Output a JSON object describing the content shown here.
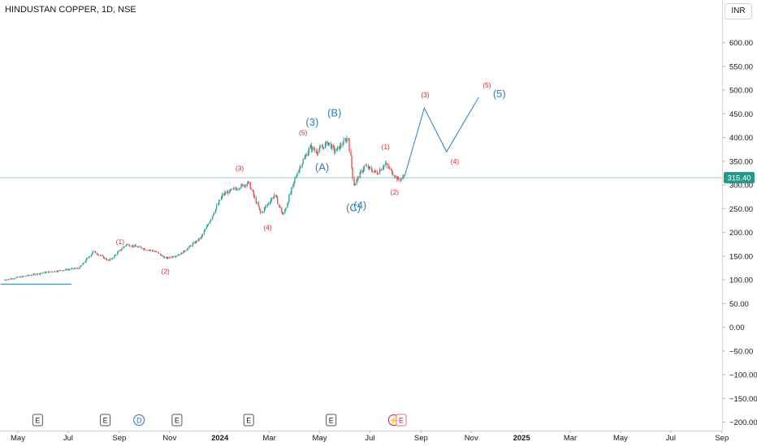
{
  "header": {
    "title": "HINDUSTAN COPPER, 1D, NSE",
    "currency": "INR"
  },
  "price_axis": {
    "labels": [
      "600.00",
      "550.00",
      "500.00",
      "450.00",
      "400.00",
      "350.00",
      "300.00",
      "250.00",
      "200.00",
      "150.00",
      "100.00",
      "50.00",
      "0.00",
      "−50.00",
      "−100.00",
      "−150.00",
      "−200.00"
    ],
    "last_price_label": "315.40"
  },
  "time_axis": {
    "labels": [
      "May",
      "Jul",
      "Sep",
      "Nov",
      "2024",
      "Mar",
      "May",
      "Jul",
      "Sep",
      "Nov",
      "2025",
      "Mar",
      "May",
      "Jul",
      "Sep"
    ]
  },
  "events": [
    "E",
    "E",
    "D",
    "E",
    "E",
    "E",
    "⚡",
    "E"
  ],
  "colors": {
    "up": "#26a69a",
    "down": "#ef5350",
    "wave_blue": "#2a7fc2",
    "wave_red": "#e0282e",
    "price_line": "#8ccfc8",
    "last_price_bg": "#22998a"
  },
  "chart_data": {
    "type": "candlestick",
    "title": "HINDUSTAN COPPER, 1D, NSE",
    "last_price": 315.4,
    "ylim": [
      -200,
      650
    ],
    "price_path": [
      [
        "2023-04-15",
        100
      ],
      [
        "2023-06-01",
        115
      ],
      [
        "2023-07-15",
        125
      ],
      [
        "2023-08-01",
        160
      ],
      [
        "2023-08-20",
        140
      ],
      [
        "2023-09-10",
        175
      ],
      [
        "2023-10-15",
        160
      ],
      [
        "2023-10-28",
        145
      ],
      [
        "2023-11-15",
        155
      ],
      [
        "2023-12-10",
        190
      ],
      [
        "2024-01-05",
        280
      ],
      [
        "2024-02-05",
        305
      ],
      [
        "2024-02-20",
        240
      ],
      [
        "2024-03-08",
        280
      ],
      [
        "2024-03-18",
        235
      ],
      [
        "2024-04-05",
        330
      ],
      [
        "2024-04-20",
        380
      ],
      [
        "2024-04-28",
        370
      ],
      [
        "2024-05-12",
        390
      ],
      [
        "2024-05-20",
        370
      ],
      [
        "2024-06-05",
        400
      ],
      [
        "2024-06-12",
        300
      ],
      [
        "2024-06-25",
        340
      ],
      [
        "2024-07-10",
        325
      ],
      [
        "2024-07-20",
        345
      ],
      [
        "2024-08-05",
        310
      ],
      [
        "2024-08-12",
        318
      ]
    ],
    "elliott_waves": [
      {
        "label": "(1)",
        "date": "2023-09-02",
        "price": 175,
        "color": "red"
      },
      {
        "label": "(2)",
        "date": "2023-10-27",
        "price": 113,
        "color": "red"
      },
      {
        "label": "(3)",
        "date": "2024-01-25",
        "price": 330,
        "color": "red"
      },
      {
        "label": "(4)",
        "date": "2024-02-28",
        "price": 205,
        "color": "red"
      },
      {
        "label": "(5)",
        "date": "2024-04-11",
        "price": 405,
        "color": "red"
      },
      {
        "label": "(3)",
        "date": "2024-04-22",
        "price": 425,
        "color": "blue"
      },
      {
        "label": "(A)",
        "date": "2024-05-04",
        "price": 330,
        "color": "blue"
      },
      {
        "label": "(B)",
        "date": "2024-05-19",
        "price": 445,
        "color": "blue"
      },
      {
        "label": "(C)",
        "date": "2024-06-11",
        "price": 245,
        "color": "blue"
      },
      {
        "label": "(4)",
        "date": "2024-06-19",
        "price": 250,
        "color": "blue"
      },
      {
        "label": "(1)",
        "date": "2024-07-20",
        "price": 375,
        "color": "red"
      },
      {
        "label": "(2)",
        "date": "2024-07-31",
        "price": 280,
        "color": "red"
      },
      {
        "label": "(3)",
        "date": "2024-09-06",
        "price": 485,
        "color": "red"
      },
      {
        "label": "(4)",
        "date": "2024-10-12",
        "price": 345,
        "color": "red"
      },
      {
        "label": "(5)",
        "date": "2024-11-20",
        "price": 505,
        "color": "red"
      },
      {
        "label": "(5)",
        "date": "2024-12-05",
        "price": 485,
        "color": "blue"
      }
    ],
    "projection_path": [
      [
        "2024-08-12",
        318
      ],
      [
        "2024-09-05",
        462
      ],
      [
        "2024-10-02",
        370
      ],
      [
        "2024-11-10",
        485
      ]
    ],
    "support_line": {
      "start": "2023-04-10",
      "end": "2023-07-05",
      "price": 91
    },
    "event_dates": [
      "2023-05-25",
      "2023-08-15",
      "2023-09-25",
      "2023-11-10",
      "2024-02-05",
      "2024-05-15",
      "2024-07-30",
      "2024-08-08"
    ]
  }
}
